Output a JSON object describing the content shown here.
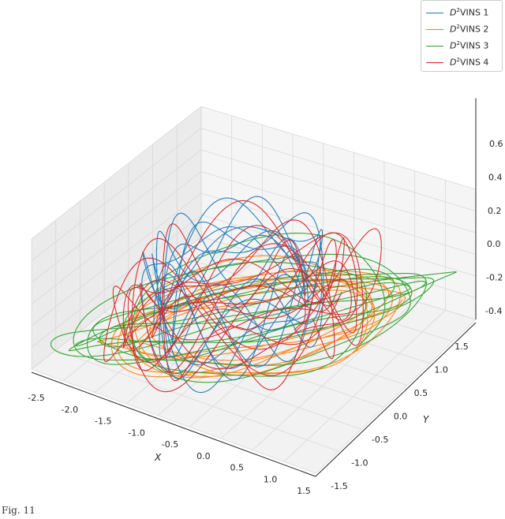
{
  "chart_data": {
    "type": "line",
    "projection": "3d",
    "title": "",
    "xlabel": "X",
    "ylabel": "Y",
    "zlabel": "",
    "xlim": [
      -2.7,
      1.6
    ],
    "ylim": [
      -1.5,
      1.7
    ],
    "zlim": [
      -0.4,
      0.75
    ],
    "x_ticks": [
      "-2.5",
      "-2.0",
      "-1.5",
      "-1.0",
      "-0.5",
      "0.0",
      "0.5",
      "1.0",
      "1.5"
    ],
    "y_ticks": [
      "-1.5",
      "-1.0",
      "-0.5",
      "0.0",
      "0.5",
      "1.0",
      "1.5"
    ],
    "z_ticks": [
      "-0.4",
      "-0.2",
      "0.0",
      "0.2",
      "0.4",
      "0.6"
    ],
    "grid": true,
    "legend_position": "top-right",
    "series": [
      {
        "name": "D²VINS 1",
        "color": "#1f77b4",
        "center": [
          -0.9,
          0.15
        ],
        "radius": [
          0.95,
          0.95
        ],
        "z_amp": 0.45,
        "z_base": 0.05
      },
      {
        "name": "D²VINS 2",
        "color": "#ff7f0e",
        "center": [
          -0.5,
          0.05
        ],
        "radius": [
          1.3,
          1.2
        ],
        "z_amp": 0.06,
        "z_base": -0.15
      },
      {
        "name": "D²VINS 3",
        "color": "#2ca02c",
        "center": [
          -0.55,
          0.05
        ],
        "radius": [
          1.55,
          1.45
        ],
        "z_amp": 0.08,
        "z_base": -0.1
      },
      {
        "name": "D²VINS 4",
        "color": "#d62728",
        "center": [
          -0.7,
          0.0
        ],
        "radius": [
          1.1,
          1.0
        ],
        "z_amp": 0.5,
        "z_base": 0.0
      }
    ]
  },
  "legend": {
    "items": [
      {
        "prefix": "D",
        "sup": "2",
        "suffix": "VINS 1",
        "color": "#1f77b4"
      },
      {
        "prefix": "D",
        "sup": "2",
        "suffix": "VINS 2",
        "color": "#ff7f0e"
      },
      {
        "prefix": "D",
        "sup": "2",
        "suffix": "VINS 3",
        "color": "#2ca02c"
      },
      {
        "prefix": "D",
        "sup": "2",
        "suffix": "VINS 4",
        "color": "#d62728"
      }
    ]
  },
  "caption": {
    "text": "Fig. 11"
  }
}
